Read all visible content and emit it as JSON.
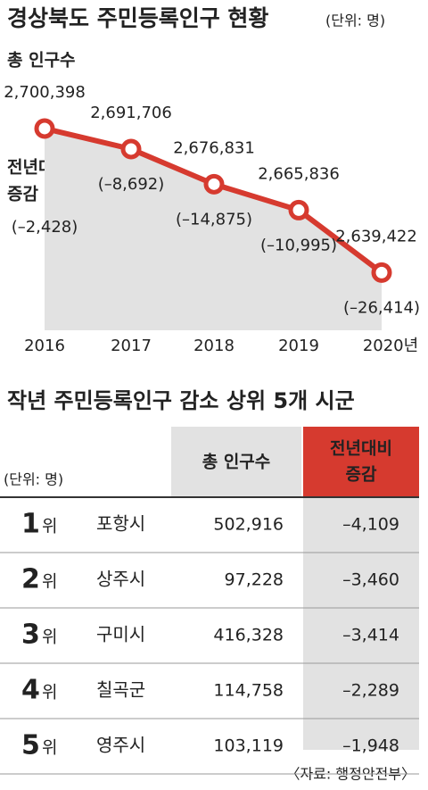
{
  "chart_data": {
    "type": "line",
    "title": "경상북도 주민등록인구 현황",
    "unit": "(단위: 명)",
    "categories": [
      "2016",
      "2017",
      "2018",
      "2019",
      "2020년"
    ],
    "series": [
      {
        "name": "총 인구수",
        "color": "#d63a2f",
        "values": [
          2700398,
          2691706,
          2676831,
          2665836,
          2639422
        ],
        "value_labels": [
          "2,700,398",
          "2,691,706",
          "2,676,831",
          "2,665,836",
          "2,639,422"
        ]
      }
    ],
    "change": {
      "name": [
        "전년대비",
        "증감"
      ],
      "values": [
        -2428,
        -8692,
        -14875,
        -10995,
        -26414
      ],
      "value_labels": [
        "(–2,428)",
        "(–8,692)",
        "(–14,875)",
        "(–10,995)",
        "(–26,414)"
      ]
    },
    "ylim": [
      2615000,
      2717000
    ],
    "area_color": "#e2e2e2"
  },
  "table": {
    "title": "작년 주민등록인구 감소 상위 5개 시군",
    "unit": "(단위: 명)",
    "headers": [
      [
        "총 인구수"
      ],
      [
        "전년대비",
        "증감"
      ]
    ],
    "rows": [
      {
        "rank": "1",
        "suffix": "위",
        "name": "포항시",
        "population": "502,916",
        "change": "–4,109"
      },
      {
        "rank": "2",
        "suffix": "위",
        "name": "상주시",
        "population": "97,228",
        "change": "–3,460"
      },
      {
        "rank": "3",
        "suffix": "위",
        "name": "구미시",
        "population": "416,328",
        "change": "–3,414"
      },
      {
        "rank": "4",
        "suffix": "위",
        "name": "칠곡군",
        "population": "114,758",
        "change": "–2,289"
      },
      {
        "rank": "5",
        "suffix": "위",
        "name": "영주시",
        "population": "103,119",
        "change": "–1,948"
      }
    ]
  },
  "source": "〈자료: 행정안전부〉"
}
